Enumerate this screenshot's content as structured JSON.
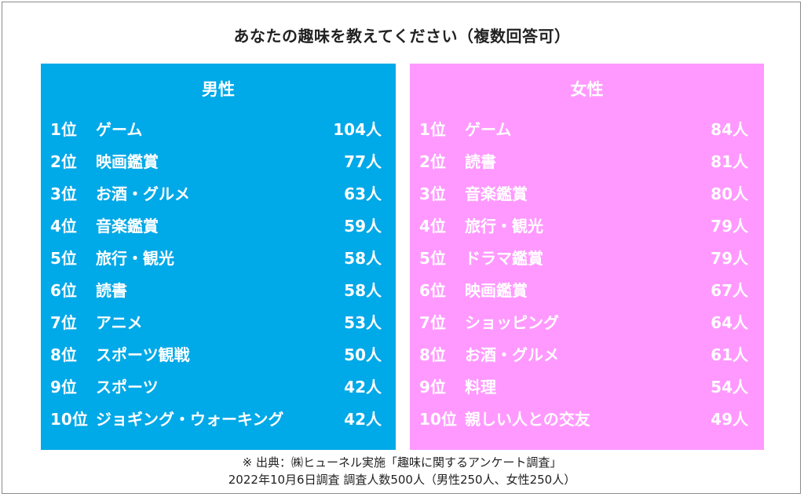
{
  "title": "あなたの趣味を教えてください（複数回答可）",
  "male": {
    "heading": "男性",
    "rows": [
      {
        "rank": "1位",
        "item": "ゲーム",
        "count": "104人"
      },
      {
        "rank": "2位",
        "item": "映画鑑賞",
        "count": "77人"
      },
      {
        "rank": "3位",
        "item": "お酒・グルメ",
        "count": "63人"
      },
      {
        "rank": "4位",
        "item": "音楽鑑賞",
        "count": "59人"
      },
      {
        "rank": "5位",
        "item": "旅行・観光",
        "count": "58人"
      },
      {
        "rank": "6位",
        "item": "読書",
        "count": "58人"
      },
      {
        "rank": "7位",
        "item": "アニメ",
        "count": "53人"
      },
      {
        "rank": "8位",
        "item": "スポーツ観戦",
        "count": "50人"
      },
      {
        "rank": "9位",
        "item": "スポーツ",
        "count": "42人"
      },
      {
        "rank": "10位",
        "item": "ジョギング・ウォーキング",
        "count": "42人"
      }
    ]
  },
  "female": {
    "heading": "女性",
    "rows": [
      {
        "rank": "1位",
        "item": "ゲーム",
        "count": "84人"
      },
      {
        "rank": "2位",
        "item": "読書",
        "count": "81人"
      },
      {
        "rank": "3位",
        "item": "音楽鑑賞",
        "count": "80人"
      },
      {
        "rank": "4位",
        "item": "旅行・観光",
        "count": "79人"
      },
      {
        "rank": "5位",
        "item": "ドラマ鑑賞",
        "count": "79人"
      },
      {
        "rank": "6位",
        "item": "映画鑑賞",
        "count": "67人"
      },
      {
        "rank": "7位",
        "item": "ショッピング",
        "count": "64人"
      },
      {
        "rank": "8位",
        "item": "お酒・グルメ",
        "count": "61人"
      },
      {
        "rank": "9位",
        "item": "料理",
        "count": "54人"
      },
      {
        "rank": "10位",
        "item": "親しい人との交友",
        "count": "49人"
      }
    ]
  },
  "footer": {
    "line1": "※ 出典：㈱ヒューネル実施「趣味に関するアンケート調査」",
    "line2": "2022年10月6日調査 調査人数500人（男性250人、女性250人）"
  },
  "colors": {
    "male_panel": "#00a9e8",
    "female_panel": "#ff99ff"
  }
}
